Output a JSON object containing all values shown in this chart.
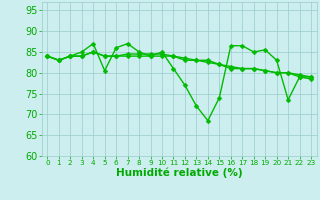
{
  "line1": {
    "x": [
      0,
      1,
      2,
      3,
      4,
      5,
      6,
      7,
      8,
      9,
      10,
      11,
      12,
      13,
      14,
      15,
      16,
      17,
      18,
      19,
      20,
      21,
      22,
      23
    ],
    "y": [
      84,
      83,
      84,
      85,
      87,
      80.5,
      86,
      87,
      85,
      84,
      85,
      81,
      77,
      72,
      68.5,
      74,
      86.5,
      86.5,
      85,
      85.5,
      83,
      73.5,
      79,
      78.5
    ]
  },
  "line2": {
    "x": [
      0,
      1,
      2,
      3,
      4,
      5,
      6,
      7,
      8,
      9,
      10,
      11,
      12,
      13,
      14,
      15,
      16,
      17,
      18,
      19,
      20,
      21,
      22,
      23
    ],
    "y": [
      84,
      83,
      84,
      84,
      85,
      84,
      84,
      84,
      84,
      84,
      84,
      84,
      83,
      83,
      83,
      82,
      81,
      81,
      81,
      80.5,
      80,
      80,
      79.5,
      79
    ]
  },
  "line3": {
    "x": [
      0,
      1,
      2,
      3,
      4,
      5,
      6,
      7,
      8,
      9,
      10,
      11,
      12,
      13,
      14,
      15,
      16,
      17,
      18,
      19,
      20,
      21,
      22,
      23
    ],
    "y": [
      84,
      83,
      84,
      84,
      85,
      84,
      84,
      84.5,
      84.5,
      84.5,
      84.5,
      84,
      83.5,
      83,
      82.5,
      82,
      81.5,
      81,
      81,
      80.5,
      80,
      80,
      79,
      79
    ]
  },
  "line_color": "#00bb00",
  "marker": "D",
  "markersize": 2.5,
  "linewidth": 1.0,
  "xlabel": "Humidité relative (%)",
  "xlabel_fontsize": 7.5,
  "xlabel_color": "#00aa00",
  "xlabel_weight": "bold",
  "ylim": [
    60,
    97
  ],
  "xlim": [
    -0.5,
    23.5
  ],
  "yticks": [
    60,
    65,
    70,
    75,
    80,
    85,
    90,
    95
  ],
  "xticks": [
    0,
    1,
    2,
    3,
    4,
    5,
    6,
    7,
    8,
    9,
    10,
    11,
    12,
    13,
    14,
    15,
    16,
    17,
    18,
    19,
    20,
    21,
    22,
    23
  ],
  "grid_color": "#99cccc",
  "bg_color": "#cceeee",
  "fig_bg": "#cceeee",
  "tick_color": "#00aa00",
  "ytick_fontsize": 7,
  "xtick_fontsize": 5.2
}
